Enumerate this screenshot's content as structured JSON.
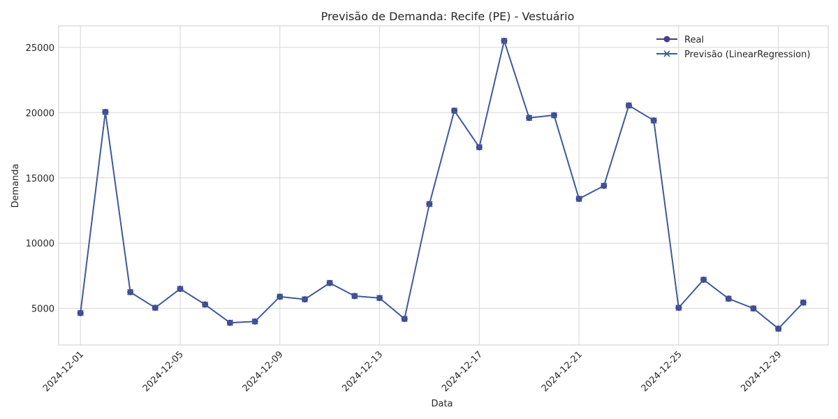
{
  "chart_data": {
    "type": "line",
    "title": "Previsão de Demanda: Recife (PE) - Vestuário",
    "xlabel": "Data",
    "ylabel": "Demanda",
    "x": [
      "2024-12-01",
      "2024-12-02",
      "2024-12-03",
      "2024-12-04",
      "2024-12-05",
      "2024-12-06",
      "2024-12-07",
      "2024-12-08",
      "2024-12-09",
      "2024-12-10",
      "2024-12-11",
      "2024-12-12",
      "2024-12-13",
      "2024-12-14",
      "2024-12-15",
      "2024-12-16",
      "2024-12-17",
      "2024-12-18",
      "2024-12-19",
      "2024-12-20",
      "2024-12-21",
      "2024-12-22",
      "2024-12-23",
      "2024-12-24",
      "2024-12-25",
      "2024-12-26",
      "2024-12-27",
      "2024-12-28",
      "2024-12-29",
      "2024-12-30"
    ],
    "series": [
      {
        "name": "Real",
        "marker": "circle",
        "color": "#483d8b",
        "values": [
          4650,
          20050,
          6250,
          5050,
          6500,
          5300,
          3900,
          4000,
          5900,
          5700,
          6950,
          5950,
          5800,
          4200,
          13000,
          20150,
          17350,
          25500,
          19600,
          19800,
          13400,
          14400,
          20550,
          19400,
          5050,
          7200,
          5750,
          5000,
          3450,
          5450
        ]
      },
      {
        "name": "Previsão (LinearRegression)",
        "marker": "x",
        "color": "#3a5a9a",
        "values": [
          4650,
          20050,
          6250,
          5050,
          6500,
          5300,
          3900,
          4000,
          5900,
          5700,
          6950,
          5950,
          5800,
          4200,
          13000,
          20150,
          17350,
          25500,
          19600,
          19800,
          13400,
          14400,
          20550,
          19400,
          5050,
          7200,
          5750,
          5000,
          3450,
          5450
        ]
      }
    ],
    "x_ticks": [
      "2024-12-01",
      "2024-12-05",
      "2024-12-09",
      "2024-12-13",
      "2024-12-17",
      "2024-12-21",
      "2024-12-25",
      "2024-12-29"
    ],
    "y_ticks": [
      5000,
      10000,
      15000,
      20000,
      25000
    ],
    "ylim": [
      2200,
      26650
    ],
    "xlim": [
      "2024-11-30T03:00",
      "2024-12-31T00:00"
    ],
    "grid": true,
    "legend_position": "top-right"
  }
}
